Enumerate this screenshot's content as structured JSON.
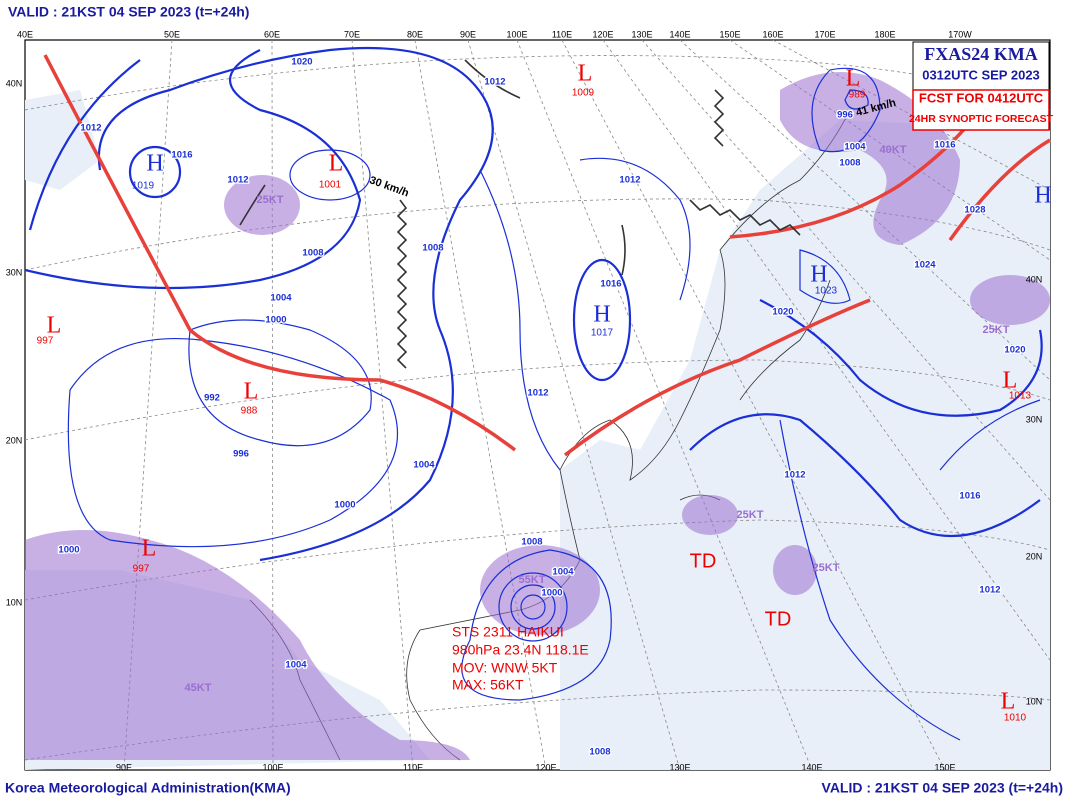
{
  "header": {
    "valid": "VALID : 21KST 04 SEP 2023  (t=+24h)"
  },
  "footer": {
    "agency": "Korea Meteorological Administration(KMA)",
    "valid": "VALID : 21KST 04 SEP 2023  (t=+24h)"
  },
  "title_box": {
    "line1": "FXAS24 KMA",
    "line2": "0312UTC SEP 2023",
    "line3": "FCST FOR 0412UTC",
    "line4": "24HR SYNOPTIC FORECAST"
  },
  "longitude_top": [
    "40E",
    "50E",
    "60E",
    "70E",
    "80E",
    "90E",
    "100E",
    "110E",
    "120E",
    "130E",
    "140E",
    "150E",
    "160E",
    "170E",
    "180E",
    "170W"
  ],
  "longitude_bottom": [
    "90E",
    "100E",
    "110E",
    "120E",
    "130E",
    "140E",
    "150E"
  ],
  "latitude_left": [
    "40N",
    "30N",
    "20N",
    "10N"
  ],
  "latitude_right": [
    "40N",
    "30N",
    "20N",
    "10N"
  ],
  "pressure_centers": [
    {
      "symbol": "L",
      "value": "1009"
    },
    {
      "symbol": "L",
      "value": "1001"
    },
    {
      "symbol": "H",
      "value": "1019"
    },
    {
      "symbol": "H",
      "value": "1017"
    },
    {
      "symbol": "H",
      "value": "1023"
    },
    {
      "symbol": "L",
      "value": "988"
    },
    {
      "symbol": "L",
      "value": "997"
    },
    {
      "symbol": "L",
      "value": "997"
    },
    {
      "symbol": "L",
      "value": "989"
    },
    {
      "symbol": "L",
      "value": "1013"
    },
    {
      "symbol": "L",
      "value": "1010"
    }
  ],
  "extra_high": "H",
  "isobar_labels": [
    "1020",
    "1012",
    "1016",
    "1012",
    "1012",
    "1008",
    "1004",
    "1000",
    "1008",
    "1012",
    "1016",
    "1012",
    "992",
    "996",
    "1004",
    "1000",
    "1008",
    "1000",
    "1004",
    "1004",
    "1000",
    "1008",
    "1012",
    "1016",
    "1012",
    "1020",
    "1024",
    "1020",
    "1028",
    "996",
    "1004",
    "1008",
    "1016"
  ],
  "wind_labels": [
    "25KT",
    "30 km/h",
    "41 km/h",
    "40KT",
    "25KT",
    "25KT",
    "25KT",
    "55KT",
    "45KT"
  ],
  "storm": {
    "lines": [
      "STS 2311 HAIKUI",
      "980hPa 23.4N 118.1E",
      "MOV: WNW 5KT",
      "MAX: 56KT"
    ]
  },
  "depressions": [
    "TD",
    "TD"
  ]
}
